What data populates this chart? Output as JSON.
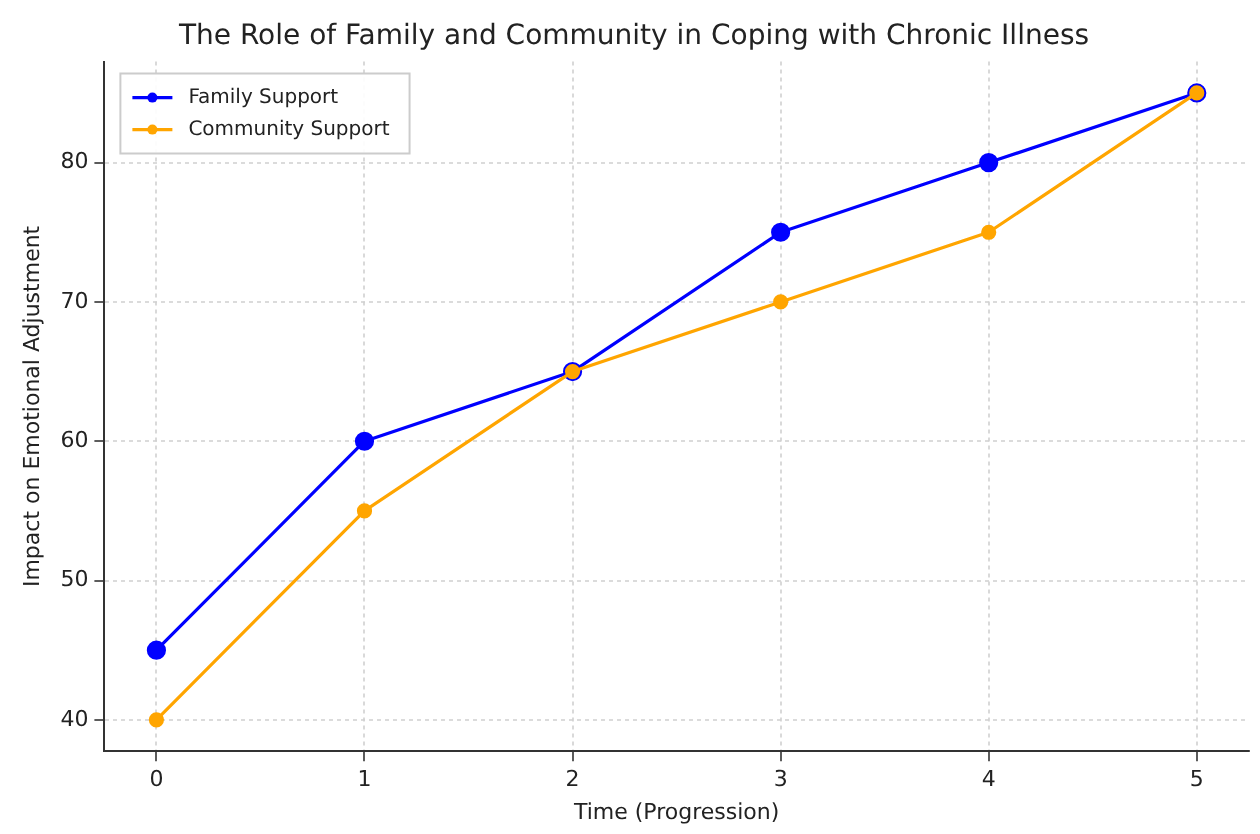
{
  "chart_data": {
    "type": "line",
    "title": "The Role of Family and Community in Coping with Chronic Illness",
    "xlabel": "Time (Progression)",
    "ylabel": "Impact on Emotional Adjustment",
    "x": [
      0,
      1,
      2,
      3,
      4,
      5
    ],
    "series": [
      {
        "name": "Family Support",
        "color": "#0000ff",
        "values": [
          45,
          60,
          65,
          75,
          80,
          85
        ]
      },
      {
        "name": "Community Support",
        "color": "#ffa500",
        "values": [
          40,
          55,
          65,
          70,
          75,
          85
        ]
      }
    ],
    "xlim": [
      -0.25,
      5.25
    ],
    "xticks": [
      0,
      1,
      2,
      3,
      4,
      5
    ],
    "ylim": [
      37.75,
      87.25
    ],
    "yticks": [
      40,
      50,
      60,
      70,
      80
    ],
    "grid": true,
    "legend": "top left",
    "marker": "circle",
    "line_style": "solid"
  }
}
